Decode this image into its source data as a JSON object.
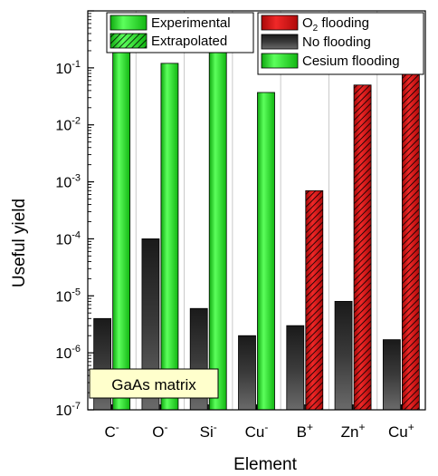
{
  "chart_data": {
    "type": "bar",
    "title": "",
    "xlabel": "Element",
    "ylabel": "Useful yield",
    "yscale": "log",
    "ylim": [
      1e-07,
      1
    ],
    "grid": "vertical",
    "categories": [
      {
        "base": "C",
        "sup": "-"
      },
      {
        "base": "O",
        "sup": "-"
      },
      {
        "base": "Si",
        "sup": "-"
      },
      {
        "base": "Cu",
        "sup": "-"
      },
      {
        "base": "B",
        "sup": "+"
      },
      {
        "base": "Zn",
        "sup": "+"
      },
      {
        "base": "Cu",
        "sup": "+"
      }
    ],
    "series": [
      {
        "name": "No flooding",
        "color": "#333333",
        "values": [
          4e-06,
          0.0001,
          6e-06,
          2e-06,
          3e-06,
          8e-06,
          1.7e-06
        ],
        "pattern": "solid"
      },
      {
        "name": "Cesium flooding",
        "color": "#22dd22",
        "values": [
          0.2,
          0.12,
          0.2,
          0.037,
          null,
          null,
          null
        ],
        "pattern": "solid"
      },
      {
        "name": "O2 flooding",
        "color": "#dd1111",
        "values": [
          null,
          null,
          null,
          null,
          0.0007,
          0.05,
          0.1
        ],
        "pattern": "hatched"
      }
    ],
    "legend_left": [
      {
        "label": "Experimental",
        "fill": "solid"
      },
      {
        "label": "Extrapolated",
        "fill": "hatched"
      }
    ],
    "legend_right": [
      {
        "label_main": "O",
        "label_sub": "2",
        "label_rest": " flooding",
        "color": "#dd1111"
      },
      {
        "label_main": "No flooding",
        "label_sub": "",
        "label_rest": "",
        "color": "#333333"
      },
      {
        "label_main": "Cesium flooding",
        "label_sub": "",
        "label_rest": "",
        "color": "#22dd22"
      }
    ],
    "y_ticks": [
      -7,
      -6,
      -5,
      -4,
      -3,
      -2,
      -1
    ],
    "annotation": "GaAs matrix"
  }
}
